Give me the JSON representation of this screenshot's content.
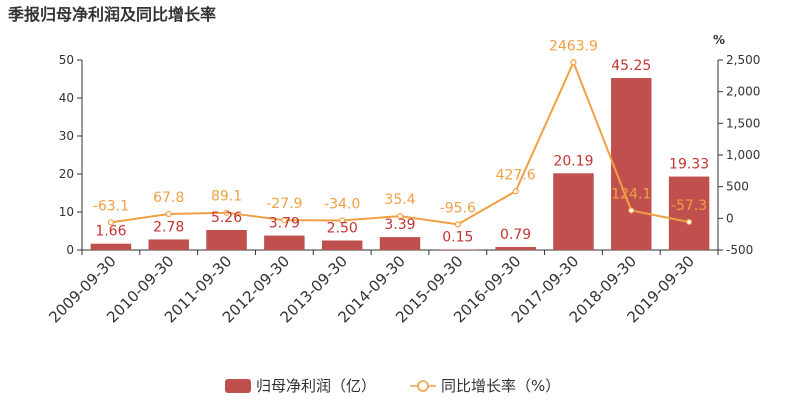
{
  "chart_data": {
    "type": "bar",
    "title": "季报归母净利润及同比增长率",
    "categories": [
      "2009-09-30",
      "2010-09-30",
      "2011-09-30",
      "2012-09-30",
      "2013-09-30",
      "2014-09-30",
      "2015-09-30",
      "2016-09-30",
      "2017-09-30",
      "2018-09-30",
      "2019-09-30"
    ],
    "series": [
      {
        "name": "归母净利润（亿）",
        "type": "bar",
        "axis": "left",
        "color": "#c0504d",
        "values": [
          1.66,
          2.78,
          5.26,
          3.79,
          2.5,
          3.39,
          0.15,
          0.79,
          20.19,
          45.25,
          19.33
        ],
        "labels": [
          "1.66",
          "2.78",
          "5.26",
          "3.79",
          "2.50",
          "3.39",
          "0.15",
          "0.79",
          "20.19",
          "45.25",
          "19.33"
        ]
      },
      {
        "name": "同比增长率（%）",
        "type": "line",
        "axis": "right",
        "color": "#f0a044",
        "values": [
          -63.1,
          67.8,
          89.1,
          -27.9,
          -34.0,
          35.4,
          -95.6,
          427.6,
          2463.9,
          124.1,
          -57.3
        ],
        "labels": [
          "-63.1",
          "67.8",
          "89.1",
          "-27.9",
          "-34.0",
          "35.4",
          "-95.6",
          "427.6",
          "2463.9",
          "124.1",
          "-57.3"
        ]
      }
    ],
    "left_axis": {
      "min": 0,
      "max": 50,
      "ticks": [
        "0",
        "10",
        "20",
        "30",
        "40",
        "50"
      ]
    },
    "right_axis": {
      "min": -500,
      "max": 2500,
      "unit": "%",
      "ticks": [
        "-500",
        "0",
        "500",
        "1,000",
        "1,500",
        "2,000",
        "2,500"
      ]
    },
    "grid": false,
    "legend": "bottom-center"
  }
}
